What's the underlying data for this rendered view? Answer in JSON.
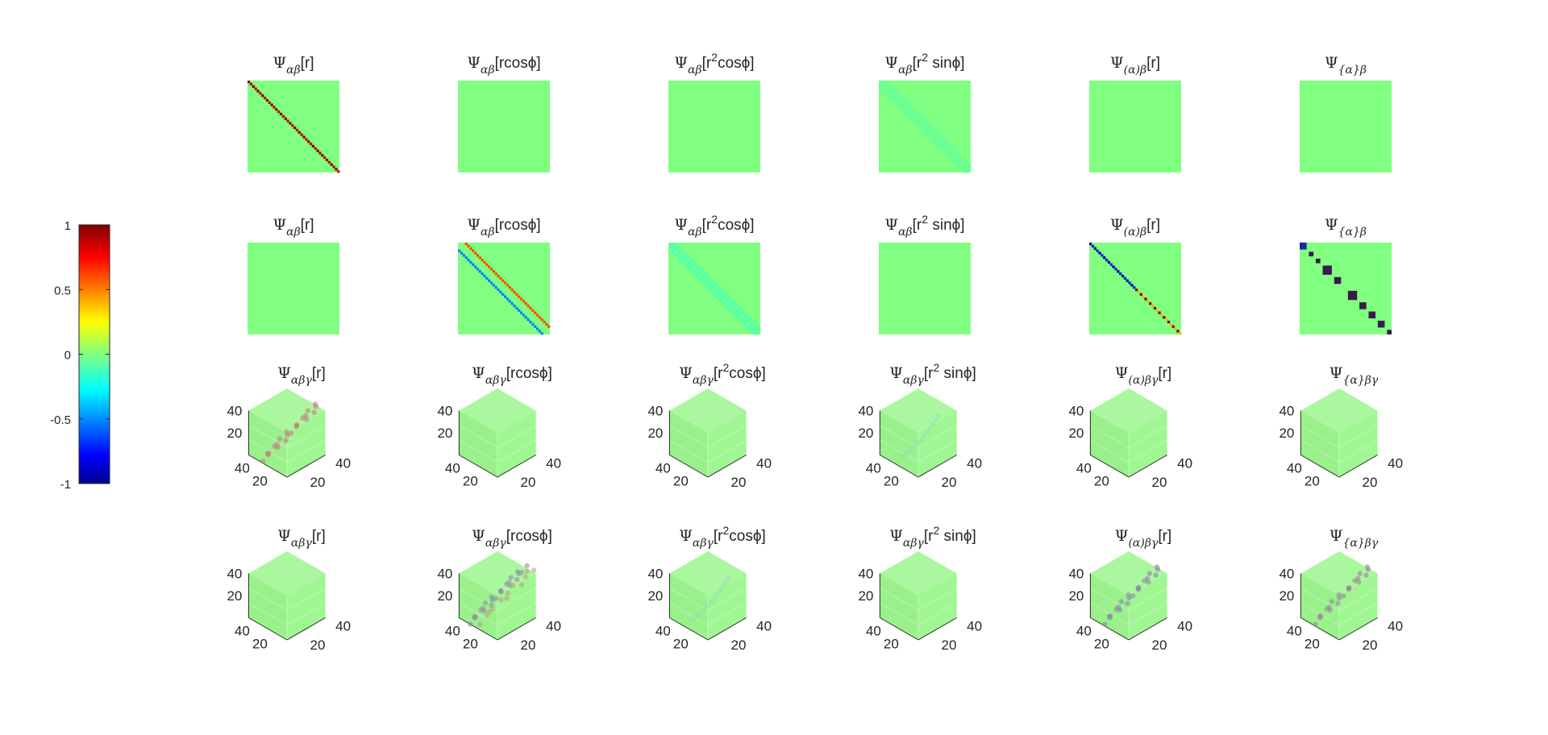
{
  "colorbar": {
    "colormap": "jet",
    "range": [
      -1,
      1
    ],
    "ticks": [
      "1",
      "0.5",
      "0",
      "-0.5",
      "-1"
    ]
  },
  "axis_tick_labels": {
    "depth": "40",
    "left": "20",
    "right_near": "20",
    "right_far": "40"
  },
  "chart_data": [
    {
      "type": "heatmap",
      "row": 1,
      "panels": [
        {
          "title": {
            "sym": "Ψ",
            "sub": "αβ",
            "arg": "[r]"
          },
          "pattern": "diagonal",
          "diagonal_value": 1.0
        },
        {
          "title": {
            "sym": "Ψ",
            "sub": "αβ",
            "arg": "[rcosϕ]"
          },
          "pattern": "zero"
        },
        {
          "title": {
            "sym": "Ψ",
            "sub": "αβ",
            "arg": "[r",
            "sup": "2",
            "arg2": "cosϕ]"
          },
          "pattern": "zero"
        },
        {
          "title": {
            "sym": "Ψ",
            "sub": "αβ",
            "arg": "[r",
            "sup": "2",
            "arg2": " sinϕ]"
          },
          "pattern": "faint_band",
          "band_value": -0.05
        },
        {
          "title": {
            "sym": "Ψ",
            "sub": "(α)β",
            "arg": "[r]"
          },
          "pattern": "zero"
        },
        {
          "title": {
            "sym": "Ψ",
            "sub": "{α}β",
            "arg": ""
          },
          "pattern": "zero"
        }
      ]
    },
    {
      "type": "heatmap",
      "row": 2,
      "panels": [
        {
          "title": {
            "sym": "Ψ",
            "sub": "αβ",
            "arg": "[r]"
          },
          "pattern": "zero"
        },
        {
          "title": {
            "sym": "Ψ",
            "sub": "αβ",
            "arg": "[rcosϕ]"
          },
          "pattern": "off_diagonals",
          "upper_value": 0.6,
          "lower_value": -0.5
        },
        {
          "title": {
            "sym": "Ψ",
            "sub": "αβ",
            "arg": "[r",
            "sup": "2",
            "arg2": "cosϕ]"
          },
          "pattern": "faint_band",
          "band_value": -0.08
        },
        {
          "title": {
            "sym": "Ψ",
            "sub": "αβ",
            "arg": "[r",
            "sup": "2",
            "arg2": " sinϕ]"
          },
          "pattern": "zero"
        },
        {
          "title": {
            "sym": "Ψ",
            "sub": "(α)β",
            "arg": "[r]"
          },
          "pattern": "split_diagonal",
          "first_value": -1.0,
          "second_value": 1.0
        },
        {
          "title": {
            "sym": "Ψ",
            "sub": "{α}β",
            "arg": ""
          },
          "pattern": "block_diagonal",
          "block_value": -1.0
        }
      ]
    },
    {
      "type": "scatter",
      "row": 3,
      "panels": [
        {
          "title": {
            "sym": "Ψ",
            "sub": "αβγ",
            "arg": "[r]"
          },
          "pattern": "diagonal_cloud",
          "point_color": "#c08080"
        },
        {
          "title": {
            "sym": "Ψ",
            "sub": "αβγ",
            "arg": "[rcosϕ]"
          },
          "pattern": "zero"
        },
        {
          "title": {
            "sym": "Ψ",
            "sub": "αβγ",
            "arg": "[r",
            "sup": "2",
            "arg2": "cosϕ]"
          },
          "pattern": "zero"
        },
        {
          "title": {
            "sym": "Ψ",
            "sub": "αβγ",
            "arg": "[r",
            "sup": "2",
            "arg2": " sinϕ]"
          },
          "pattern": "faint_curve",
          "point_color": "#8fe0b0"
        },
        {
          "title": {
            "sym": "Ψ",
            "sub": "(α)βγ",
            "arg": "[r]"
          },
          "pattern": "zero"
        },
        {
          "title": {
            "sym": "Ψ",
            "sub": "{α}βγ",
            "arg": ""
          },
          "pattern": "zero"
        }
      ]
    },
    {
      "type": "scatter",
      "row": 4,
      "panels": [
        {
          "title": {
            "sym": "Ψ",
            "sub": "αβγ",
            "arg": "[r]"
          },
          "pattern": "zero"
        },
        {
          "title": {
            "sym": "Ψ",
            "sub": "αβγ",
            "arg": "[rcosϕ]"
          },
          "pattern": "double_cloud",
          "point_color": "#9090a8",
          "point_color2": "#c0a080"
        },
        {
          "title": {
            "sym": "Ψ",
            "sub": "αβγ",
            "arg": "[r",
            "sup": "2",
            "arg2": "cosϕ]"
          },
          "pattern": "faint_curve",
          "point_color": "#8fe0b0"
        },
        {
          "title": {
            "sym": "Ψ",
            "sub": "αβγ",
            "arg": "[r",
            "sup": "2",
            "arg2": " sinϕ]"
          },
          "pattern": "zero"
        },
        {
          "title": {
            "sym": "Ψ",
            "sub": "(α)βγ",
            "arg": "[r]"
          },
          "pattern": "diagonal_cloud",
          "point_color": "#8888a8"
        },
        {
          "title": {
            "sym": "Ψ",
            "sub": "{α}βγ",
            "arg": ""
          },
          "pattern": "diagonal_cloud",
          "point_color": "#9a8898"
        }
      ]
    }
  ]
}
